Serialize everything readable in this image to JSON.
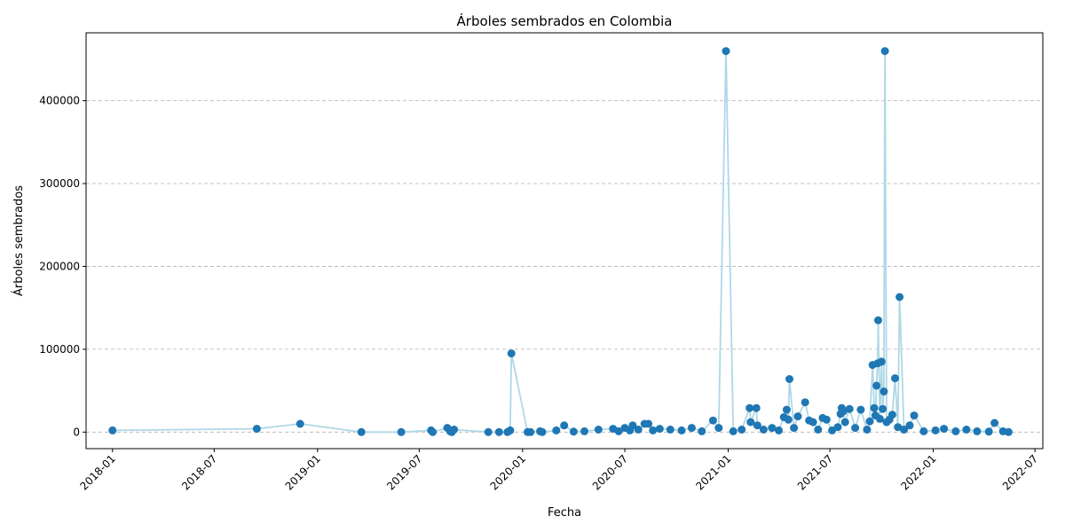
{
  "chart_data": {
    "type": "line",
    "title": "Árboles sembrados en Colombia",
    "xlabel": "Fecha",
    "ylabel": "Árboles sembrados",
    "x_axis_type": "date",
    "x_range": [
      "2017-11-15",
      "2022-07-15"
    ],
    "ylim": [
      -20000,
      482000
    ],
    "grid": {
      "y": true,
      "x": false,
      "style": "dashed"
    },
    "x_ticks": [
      "2018-01",
      "2018-07",
      "2019-01",
      "2019-07",
      "2020-01",
      "2020-07",
      "2021-01",
      "2021-07",
      "2022-01",
      "2022-07"
    ],
    "y_ticks": [
      0,
      100000,
      200000,
      300000,
      400000
    ],
    "y_tick_labels": [
      "0",
      "100000",
      "200000",
      "300000",
      "400000"
    ],
    "colors": {
      "line": "#add8e6",
      "marker": "#1f77b4"
    },
    "series": [
      {
        "points": [
          [
            "2018-01-01",
            2000
          ],
          [
            "2018-09-15",
            4000
          ],
          [
            "2018-12-01",
            10000
          ],
          [
            "2019-03-20",
            0
          ],
          [
            "2019-05-30",
            0
          ],
          [
            "2019-07-22",
            2000
          ],
          [
            "2019-07-25",
            0
          ],
          [
            "2019-08-20",
            5000
          ],
          [
            "2019-08-25",
            1000
          ],
          [
            "2019-08-28",
            0
          ],
          [
            "2019-09-01",
            3000
          ],
          [
            "2019-11-01",
            0
          ],
          [
            "2019-11-20",
            0
          ],
          [
            "2019-12-05",
            0
          ],
          [
            "2019-12-10",
            2000
          ],
          [
            "2019-12-12",
            95000
          ],
          [
            "2020-01-10",
            0
          ],
          [
            "2020-01-15",
            0
          ],
          [
            "2020-02-01",
            1000
          ],
          [
            "2020-02-05",
            0
          ],
          [
            "2020-03-01",
            2000
          ],
          [
            "2020-03-15",
            8000
          ],
          [
            "2020-04-01",
            500
          ],
          [
            "2020-04-20",
            1000
          ],
          [
            "2020-05-15",
            3000
          ],
          [
            "2020-06-10",
            4000
          ],
          [
            "2020-06-20",
            1000
          ],
          [
            "2020-07-01",
            5000
          ],
          [
            "2020-07-10",
            2000
          ],
          [
            "2020-07-15",
            8000
          ],
          [
            "2020-07-25",
            3000
          ],
          [
            "2020-08-05",
            10000
          ],
          [
            "2020-08-12",
            10000
          ],
          [
            "2020-08-20",
            2000
          ],
          [
            "2020-09-01",
            4000
          ],
          [
            "2020-09-20",
            3000
          ],
          [
            "2020-10-10",
            2000
          ],
          [
            "2020-10-28",
            5000
          ],
          [
            "2020-11-15",
            1000
          ],
          [
            "2020-12-05",
            14000
          ],
          [
            "2020-12-15",
            5000
          ],
          [
            "2020-12-28",
            460000
          ],
          [
            "2021-01-10",
            1000
          ],
          [
            "2021-01-25",
            3000
          ],
          [
            "2021-02-08",
            29000
          ],
          [
            "2021-02-10",
            12000
          ],
          [
            "2021-02-20",
            29000
          ],
          [
            "2021-02-22",
            8000
          ],
          [
            "2021-03-05",
            3000
          ],
          [
            "2021-03-20",
            5000
          ],
          [
            "2021-04-01",
            2000
          ],
          [
            "2021-04-10",
            18000
          ],
          [
            "2021-04-15",
            27000
          ],
          [
            "2021-04-18",
            15000
          ],
          [
            "2021-04-20",
            64000
          ],
          [
            "2021-04-28",
            5000
          ],
          [
            "2021-05-05",
            19000
          ],
          [
            "2021-05-18",
            36000
          ],
          [
            "2021-05-25",
            14000
          ],
          [
            "2021-06-01",
            12000
          ],
          [
            "2021-06-10",
            3000
          ],
          [
            "2021-06-18",
            17000
          ],
          [
            "2021-06-25",
            15000
          ],
          [
            "2021-07-05",
            2000
          ],
          [
            "2021-07-15",
            6000
          ],
          [
            "2021-07-20",
            22000
          ],
          [
            "2021-07-22",
            29000
          ],
          [
            "2021-07-25",
            25000
          ],
          [
            "2021-07-28",
            12000
          ],
          [
            "2021-08-05",
            28000
          ],
          [
            "2021-08-15",
            5000
          ],
          [
            "2021-08-25",
            27000
          ],
          [
            "2021-09-05",
            3000
          ],
          [
            "2021-09-10",
            13000
          ],
          [
            "2021-09-15",
            81000
          ],
          [
            "2021-09-18",
            29000
          ],
          [
            "2021-09-20",
            20000
          ],
          [
            "2021-09-22",
            56000
          ],
          [
            "2021-09-24",
            83000
          ],
          [
            "2021-09-25",
            135000
          ],
          [
            "2021-09-28",
            16000
          ],
          [
            "2021-10-01",
            85000
          ],
          [
            "2021-10-03",
            28000
          ],
          [
            "2021-10-05",
            49000
          ],
          [
            "2021-10-07",
            460000
          ],
          [
            "2021-10-10",
            12000
          ],
          [
            "2021-10-15",
            15000
          ],
          [
            "2021-10-20",
            21000
          ],
          [
            "2021-10-25",
            65000
          ],
          [
            "2021-10-30",
            6000
          ],
          [
            "2021-11-02",
            163000
          ],
          [
            "2021-11-10",
            3000
          ],
          [
            "2021-11-20",
            8000
          ],
          [
            "2021-11-28",
            20000
          ],
          [
            "2021-12-15",
            1000
          ],
          [
            "2022-01-05",
            2000
          ],
          [
            "2022-01-20",
            4000
          ],
          [
            "2022-02-10",
            1000
          ],
          [
            "2022-03-01",
            3000
          ],
          [
            "2022-03-20",
            1000
          ],
          [
            "2022-04-10",
            500
          ],
          [
            "2022-04-20",
            11000
          ],
          [
            "2022-05-05",
            1000
          ],
          [
            "2022-05-15",
            0
          ]
        ]
      }
    ]
  }
}
